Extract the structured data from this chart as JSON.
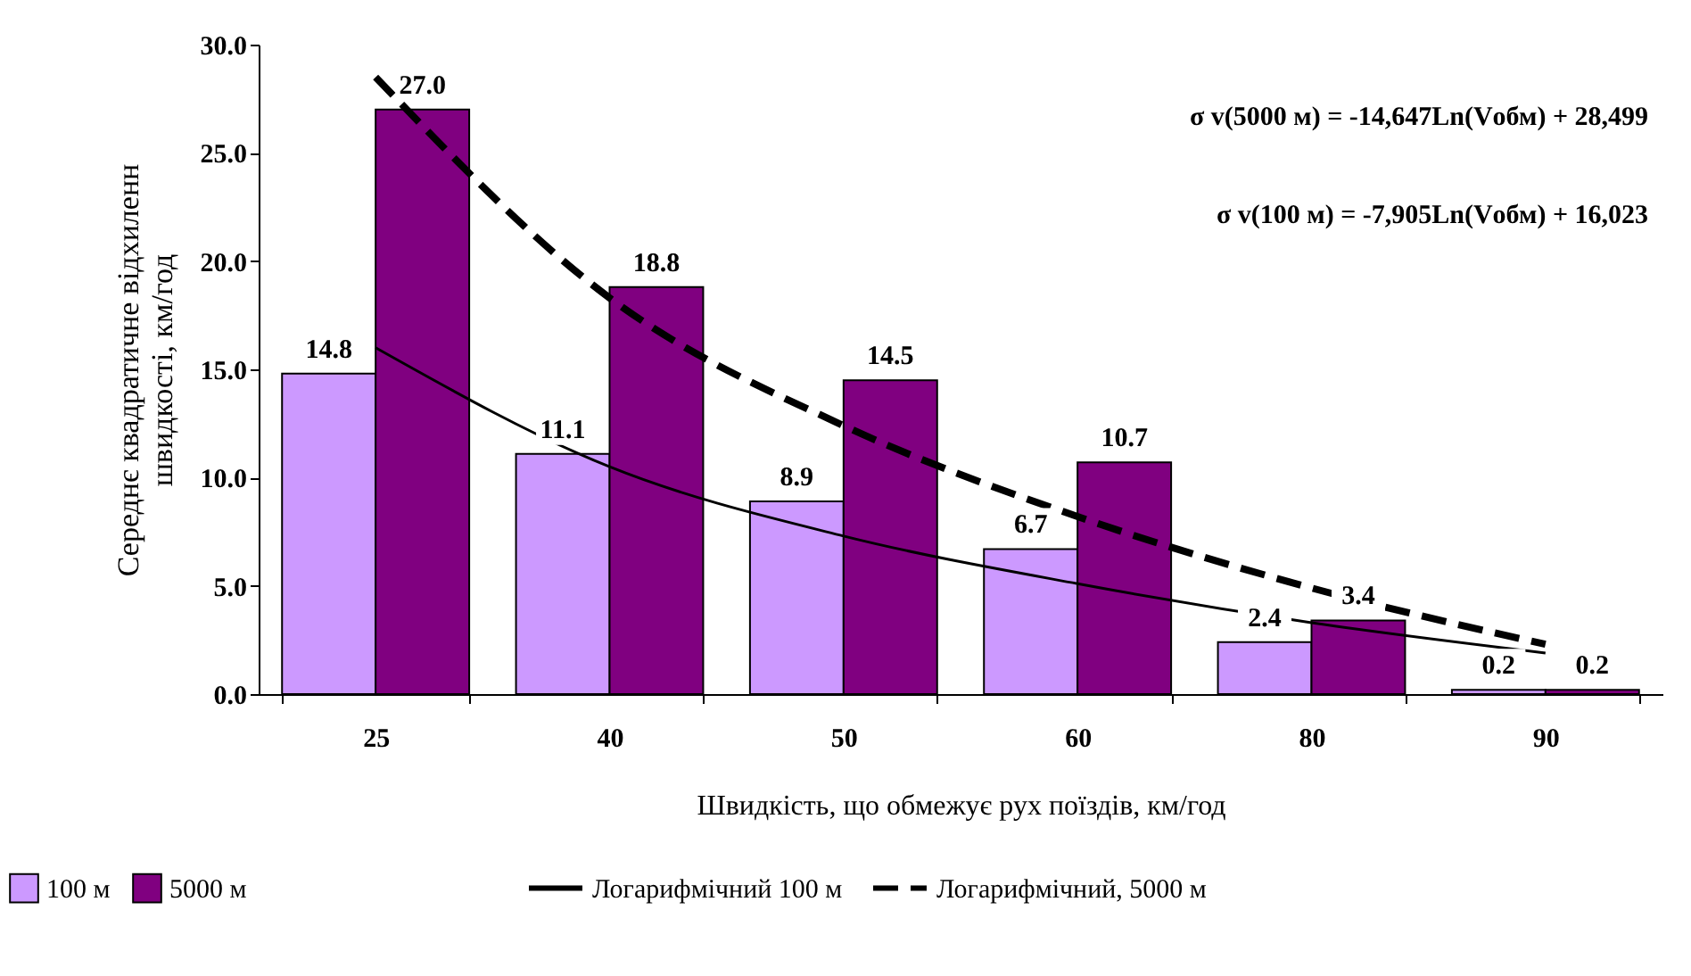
{
  "chart_data": {
    "type": "bar",
    "xlabel": "Швидкість, що обмежує рух поїздів, км/год",
    "ylabel": "Середнє квадратичне відхиленн\nшвидкості, км/год",
    "categories": [
      "25",
      "40",
      "50",
      "60",
      "80",
      "90"
    ],
    "series": [
      {
        "name": "100 м",
        "color": "#cc99ff",
        "values": [
          14.8,
          11.1,
          8.9,
          6.7,
          2.4,
          0.2
        ],
        "value_labels": [
          "14.8",
          "11.1",
          "8.9",
          "6.7",
          "2.4",
          "0.2"
        ]
      },
      {
        "name": "5000 м",
        "color": "#800080",
        "values": [
          27.0,
          18.8,
          14.5,
          10.7,
          3.4,
          0.2
        ],
        "value_labels": [
          "27.0",
          "18.8",
          "14.5",
          "10.7",
          "3.4",
          "0.2"
        ]
      },
      {
        "name": "Логарифмічний 100 м",
        "type": "line",
        "color": "#000000",
        "line_style": "solid",
        "values": [
          16.0,
          10.5,
          7.3,
          5.1,
          3.3,
          1.9
        ]
      },
      {
        "name": "Логарифмічний, 5000 м",
        "type": "line",
        "color": "#000000",
        "line_style": "dashed",
        "values": [
          28.5,
          18.3,
          12.4,
          8.2,
          4.9,
          2.3
        ]
      }
    ],
    "ylim": [
      0,
      30
    ],
    "yticks": [
      {
        "value": 0,
        "label": "0.0"
      },
      {
        "value": 5,
        "label": "5.0"
      },
      {
        "value": 10,
        "label": "10.0"
      },
      {
        "value": 15,
        "label": "15.0"
      },
      {
        "value": 20,
        "label": "20.0"
      },
      {
        "value": 25,
        "label": "25.0"
      },
      {
        "value": 30,
        "label": "30.0"
      }
    ],
    "annotations": [
      "σ v(5000 м) = -14,647Ln(Vобм) + 28,499",
      "σ v(100 м) = -7,905Ln(Vобм) + 16,023"
    ],
    "grid": false,
    "legend": "bottom"
  }
}
